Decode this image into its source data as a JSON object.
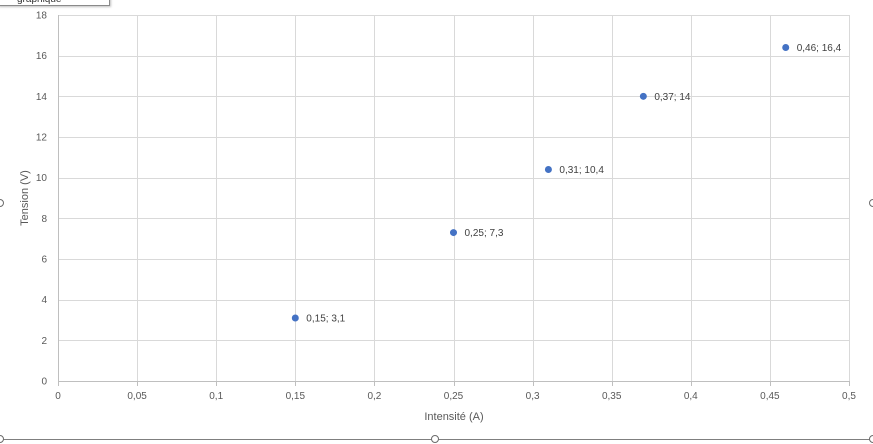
{
  "chart_data": {
    "type": "scatter",
    "xlabel": "Intensité (A)",
    "ylabel": "Tension (V)",
    "xlim": [
      0,
      0.5
    ],
    "ylim": [
      0,
      18
    ],
    "x_ticks": [
      0,
      0.05,
      0.1,
      0.15,
      0.2,
      0.25,
      0.3,
      0.35,
      0.4,
      0.45,
      0.5
    ],
    "x_tick_labels": [
      "0",
      "0,05",
      "0,1",
      "0,15",
      "0,2",
      "0,25",
      "0,3",
      "0,35",
      "0,4",
      "0,45",
      "0,5"
    ],
    "y_ticks": [
      0,
      2,
      4,
      6,
      8,
      10,
      12,
      14,
      16,
      18
    ],
    "y_tick_labels": [
      "0",
      "2",
      "4",
      "6",
      "8",
      "10",
      "12",
      "14",
      "16",
      "18"
    ],
    "grid": true,
    "points": [
      {
        "x": 0.15,
        "y": 3.1,
        "label": "0,15; 3,1"
      },
      {
        "x": 0.25,
        "y": 7.3,
        "label": "0,25; 7,3"
      },
      {
        "x": 0.31,
        "y": 10.4,
        "label": "0,31; 10,4"
      },
      {
        "x": 0.37,
        "y": 14,
        "label": "0,37; 14"
      },
      {
        "x": 0.46,
        "y": 16.4,
        "label": "0,46; 16,4"
      }
    ],
    "marker_color": "#4472c4"
  },
  "tooltip": {
    "text": "graphique"
  }
}
